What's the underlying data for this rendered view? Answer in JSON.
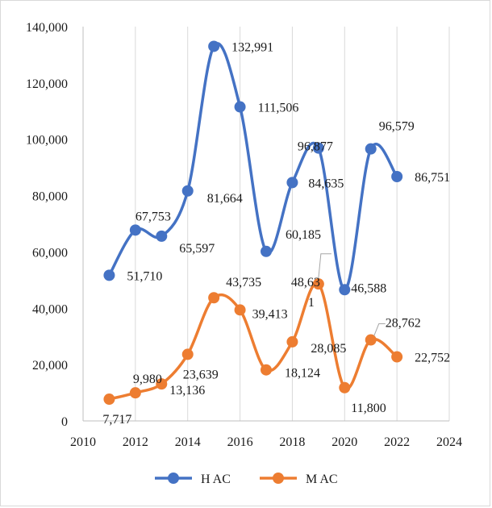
{
  "chart_data": {
    "type": "line",
    "title": "",
    "xlabel": "",
    "ylabel": "",
    "xlim": [
      2010,
      2024
    ],
    "ylim": [
      0,
      140000
    ],
    "x_ticks": [
      "2010",
      "2012",
      "2014",
      "2016",
      "2018",
      "2020",
      "2022",
      "2024"
    ],
    "y_ticks": [
      "0",
      "20,000",
      "40,000",
      "60,000",
      "80,000",
      "100,000",
      "120,000",
      "140,000"
    ],
    "grid": "vertical",
    "legend_position": "bottom",
    "x": [
      2011,
      2012,
      2013,
      2014,
      2015,
      2016,
      2017,
      2018,
      2019,
      2020,
      2021,
      2022
    ],
    "series": [
      {
        "name": "H AC",
        "color": "#4472c4",
        "values": [
          51710,
          67753,
          65597,
          81664,
          132991,
          111506,
          60185,
          84635,
          96877,
          46588,
          96579,
          86751
        ],
        "labels": [
          "51,710",
          "67,753",
          "65,597",
          "81,664",
          "132,991",
          "111,506",
          "60,185",
          "84,635",
          "96,877",
          "46,588",
          "96,579",
          "86,751"
        ]
      },
      {
        "name": "M AC",
        "color": "#ed7d31",
        "values": [
          7717,
          9980,
          13136,
          23639,
          43735,
          39413,
          18124,
          28085,
          48631,
          11800,
          28762,
          22752
        ],
        "labels": [
          "7,717",
          "9,980",
          "13,136",
          "23,639",
          "43,735",
          "39,413",
          "18,124",
          "28,085",
          "48,63\n1",
          "11,800",
          "28,762",
          "22,752"
        ]
      }
    ]
  }
}
